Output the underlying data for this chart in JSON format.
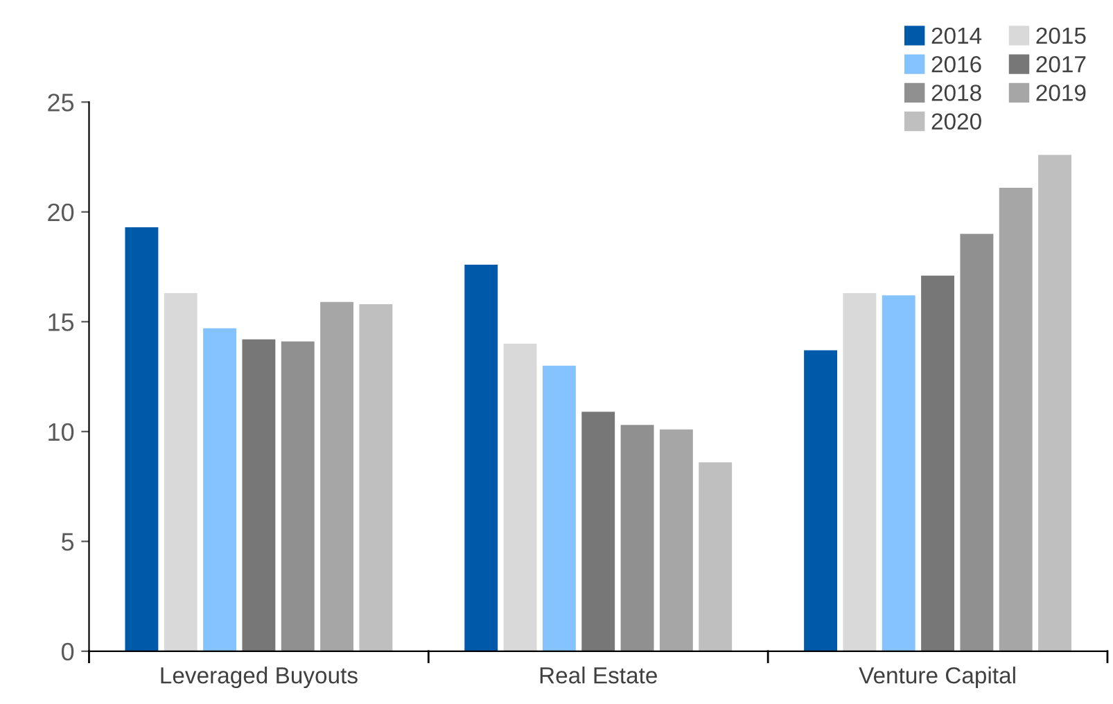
{
  "chart_data": {
    "type": "bar",
    "categories": [
      "Leveraged Buyouts",
      "Real Estate",
      "Venture Capital"
    ],
    "series": [
      {
        "name": "2014",
        "color": "#005aaa",
        "values": [
          19.3,
          17.6,
          13.7
        ]
      },
      {
        "name": "2015",
        "color": "#d9d9d9",
        "values": [
          16.3,
          14.0,
          16.3
        ]
      },
      {
        "name": "2016",
        "color": "#84c3ff",
        "values": [
          14.7,
          13.0,
          16.2
        ]
      },
      {
        "name": "2017",
        "color": "#777777",
        "values": [
          14.2,
          10.9,
          17.1
        ]
      },
      {
        "name": "2018",
        "color": "#909090",
        "values": [
          14.1,
          10.3,
          19.0
        ]
      },
      {
        "name": "2019",
        "color": "#a6a6a6",
        "values": [
          15.9,
          10.1,
          21.1
        ]
      },
      {
        "name": "2020",
        "color": "#bfbfbf",
        "values": [
          15.8,
          8.6,
          22.6
        ]
      }
    ],
    "ylim": [
      0,
      25
    ],
    "yticks": [
      0,
      5,
      10,
      15,
      20,
      25
    ],
    "grid": false,
    "legend": "top right"
  }
}
